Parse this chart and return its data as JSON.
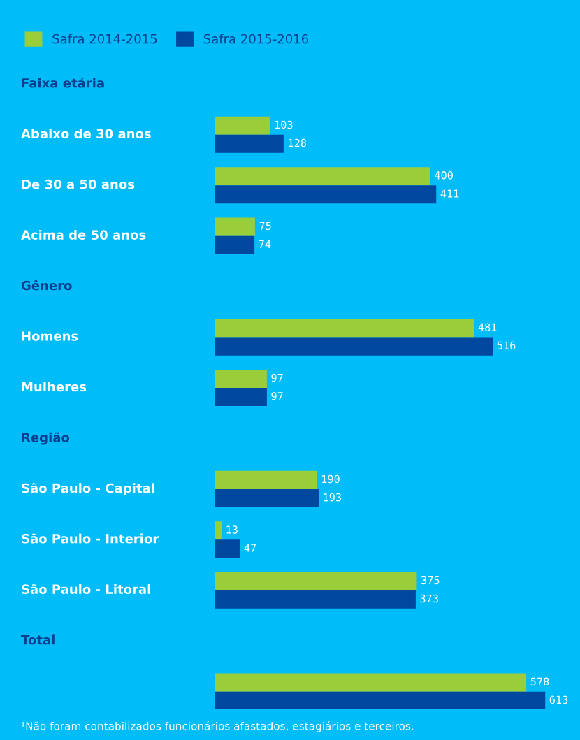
{
  "chart_data": {
    "type": "bar",
    "orientation": "horizontal",
    "legend": "top left",
    "data_labels": true,
    "categories": [
      "Faixa etária",
      "Abaixo de 30 anos",
      "De 30 a 50 anos",
      "Acima de 50 anos",
      "Gênero",
      "Homens",
      "Mulheres",
      "Região",
      "São Paulo - Capital",
      "São Paulo - Interior",
      "São Paulo - Litoral",
      "Total",
      null
    ],
    "series": [
      {
        "name": "Safra 2014-2015",
        "color": "#9acd3a",
        "values": [
          null,
          103,
          400,
          75,
          null,
          481,
          97,
          null,
          190,
          13,
          375,
          null,
          578
        ]
      },
      {
        "name": "Safra 2015-2016",
        "color": "#0047a0",
        "values": [
          null,
          128,
          411,
          74,
          null,
          516,
          97,
          null,
          193,
          47,
          373,
          null,
          613
        ]
      }
    ],
    "annotations": [
      "¹Não foram contabilizados funcionários afastados, estagiários e terceiros."
    ]
  }
}
